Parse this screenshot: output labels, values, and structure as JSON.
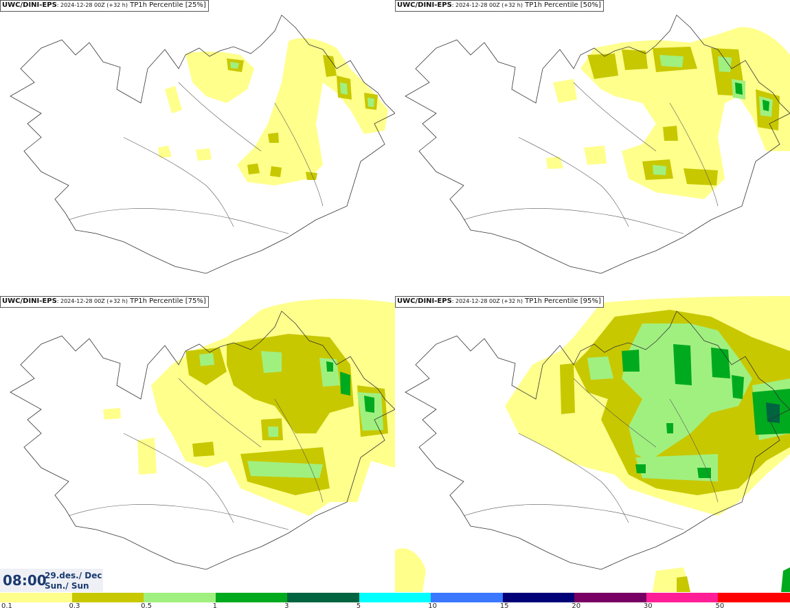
{
  "panels": [
    {
      "model": "UWC/DINI-EPS",
      "run": ": 2024-12-28 00Z (+32 h)",
      "param": " TP1h Percentile [25%]"
    },
    {
      "model": "UWC/DINI-EPS",
      "run": ": 2024-12-28 00Z (+32 h)",
      "param": " TP1h Percentile [50%]"
    },
    {
      "model": "UWC/DINI-EPS",
      "run": ": 2024-12-28 00Z (+32 h)",
      "param": " TP1h Percentile [75%]"
    },
    {
      "model": "UWC/DINI-EPS",
      "run": ": 2024-12-28 00Z (+32 h)",
      "param": " TP1h Percentile [95%]"
    }
  ],
  "time": {
    "hour": "08:00",
    "date": "29.des./ Dec",
    "day": "Sun./ Sun"
  },
  "legend": {
    "labels": [
      "0.1",
      "0.3",
      "0.5",
      "1",
      "3",
      "5",
      "10",
      "15",
      "20",
      "30",
      "50"
    ],
    "colors": [
      "#ffff8c",
      "#c8c800",
      "#a0f080",
      "#00aa1e",
      "#006440",
      "#00ffff",
      "#3c78ff",
      "#000078",
      "#780064",
      "#ff1e96",
      "#ff0000"
    ]
  }
}
